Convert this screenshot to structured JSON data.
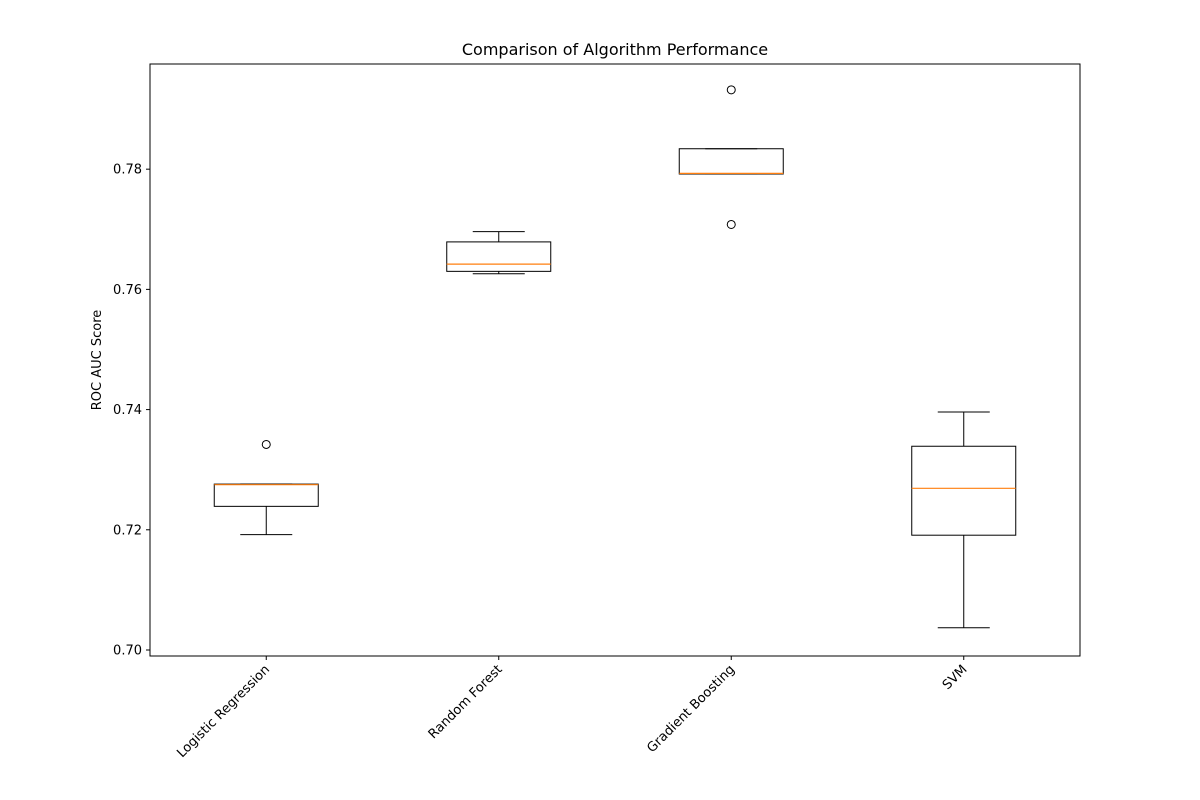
{
  "chart_data": {
    "type": "box",
    "title": "Comparison of Algorithm Performance",
    "xlabel": "",
    "ylabel": "ROC AUC Score",
    "categories": [
      "Logistic Regression",
      "Random Forest",
      "Gradient Boosting",
      "SVM"
    ],
    "ylim": [
      0.699,
      0.7975
    ],
    "yticks": [
      0.7,
      0.72,
      0.74,
      0.76,
      0.78
    ],
    "ytick_labels": [
      "0.70",
      "0.72",
      "0.74",
      "0.76",
      "0.78"
    ],
    "grid": false,
    "boxes": [
      {
        "category": "Logistic Regression",
        "whisker_low": 0.7192,
        "q1": 0.7239,
        "median": 0.7275,
        "q3": 0.7276,
        "whisker_high": 0.7276,
        "outliers": [
          0.7342
        ]
      },
      {
        "category": "Random Forest",
        "whisker_low": 0.7626,
        "q1": 0.763,
        "median": 0.7642,
        "q3": 0.7679,
        "whisker_high": 0.7696,
        "outliers": []
      },
      {
        "category": "Gradient Boosting",
        "whisker_low": 0.7792,
        "q1": 0.7792,
        "median": 0.7793,
        "q3": 0.7834,
        "whisker_high": 0.7834,
        "outliers": [
          0.7932,
          0.7708
        ]
      },
      {
        "category": "SVM",
        "whisker_low": 0.7037,
        "q1": 0.7191,
        "median": 0.7269,
        "q3": 0.7339,
        "whisker_high": 0.7396,
        "outliers": []
      }
    ],
    "colors": {
      "box": "#000000",
      "median": "#ff7f0e",
      "axes": "#000000"
    }
  }
}
